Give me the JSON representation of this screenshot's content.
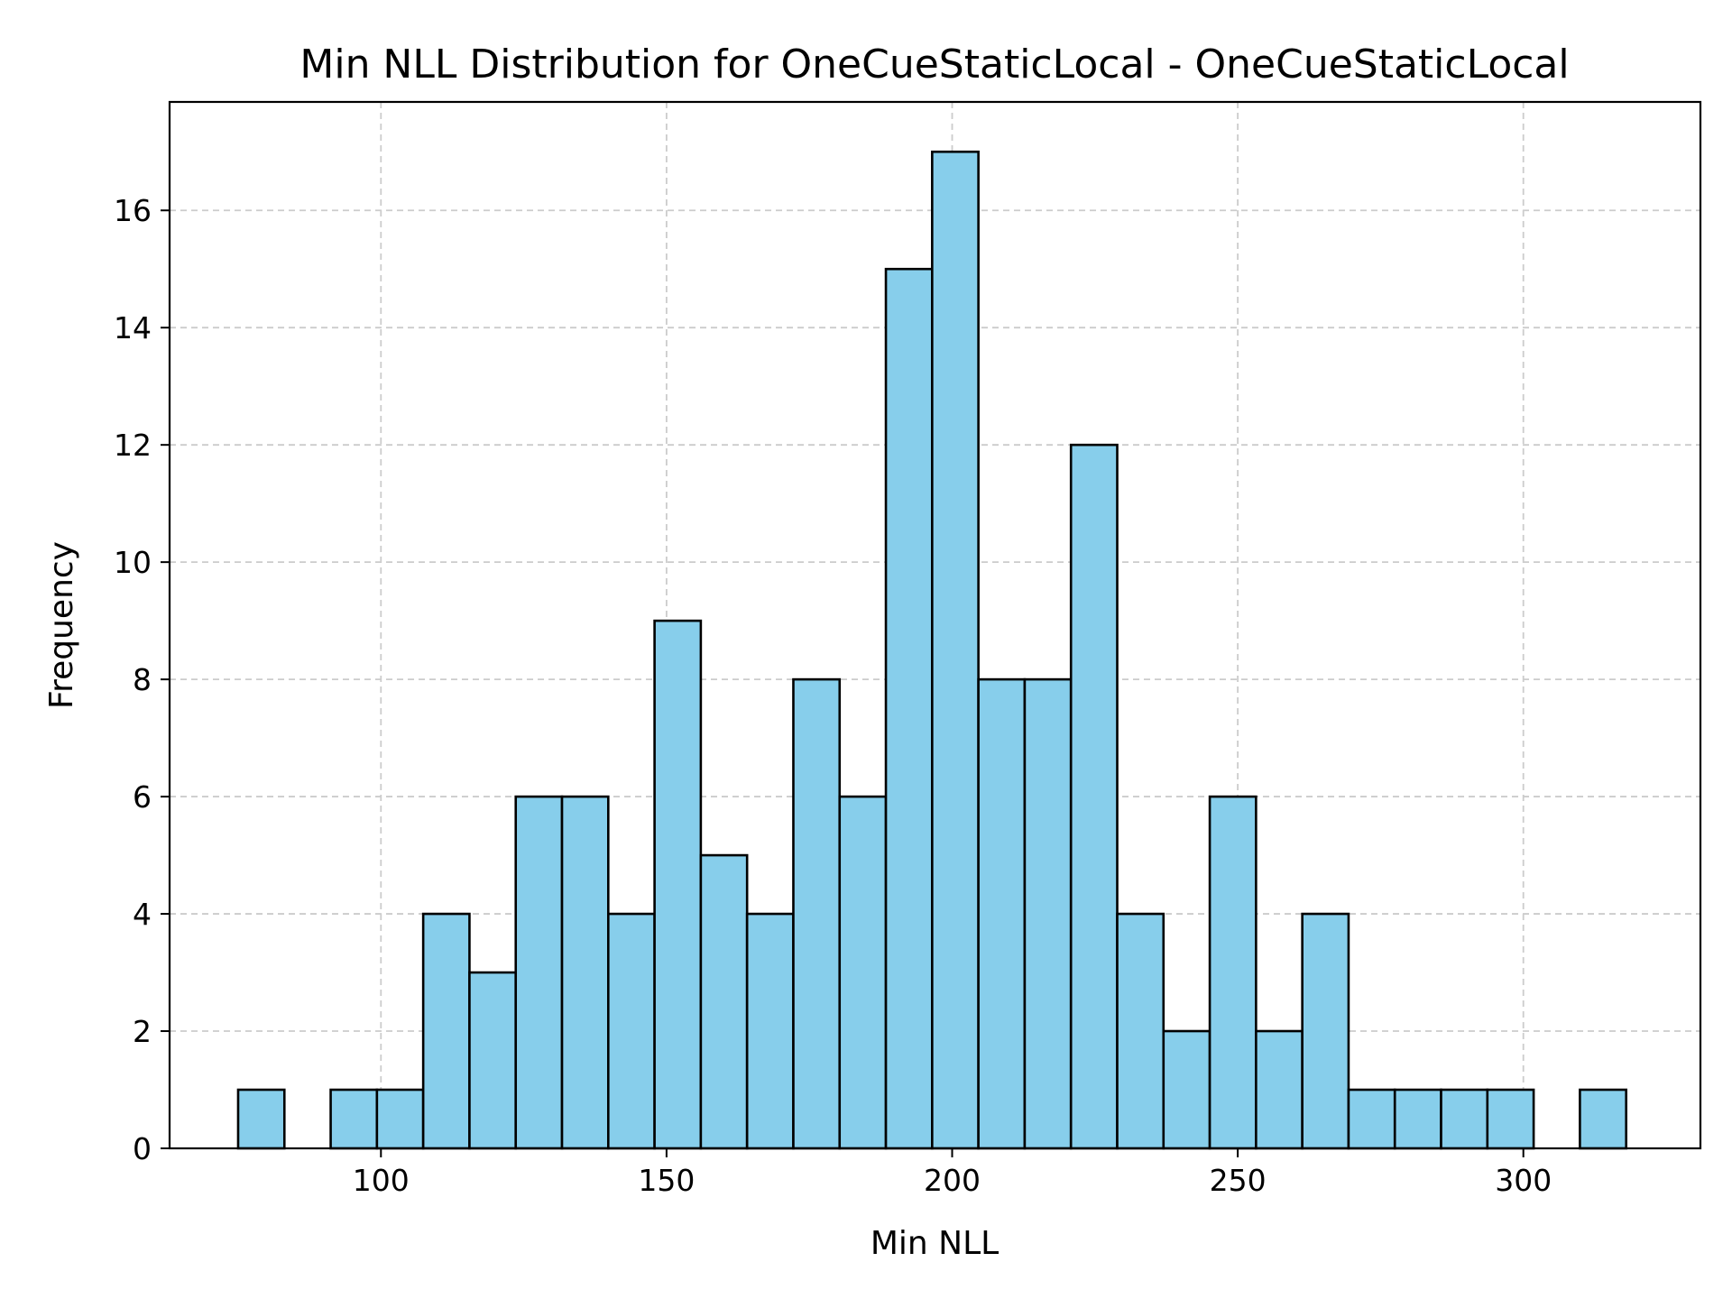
{
  "chart_data": {
    "type": "bar",
    "title": "Min NLL Distribution for OneCueStaticLocal - OneCueStaticLocal",
    "xlabel": "Min NLL",
    "ylabel": "Frequency",
    "xlim": [
      63,
      331
    ],
    "ylim": [
      0,
      17.85
    ],
    "x_ticks": [
      100,
      150,
      200,
      250,
      300
    ],
    "y_ticks": [
      0,
      2,
      4,
      6,
      8,
      10,
      12,
      14,
      16
    ],
    "grid": true,
    "bin_edges": [
      75,
      83.1,
      91.2,
      99.3,
      107.4,
      115.5,
      123.6,
      131.7,
      139.8,
      147.9,
      156.0,
      164.1,
      172.2,
      180.3,
      188.4,
      196.5,
      204.6,
      212.7,
      220.8,
      228.9,
      237.0,
      245.1,
      253.2,
      261.3,
      269.4,
      277.5,
      285.6,
      293.7,
      301.8,
      309.9,
      318.0
    ],
    "values": [
      1,
      0,
      1,
      1,
      4,
      3,
      6,
      6,
      4,
      9,
      5,
      4,
      8,
      6,
      15,
      17,
      8,
      8,
      12,
      4,
      2,
      6,
      2,
      4,
      1,
      1,
      1,
      1,
      0,
      1
    ],
    "colors": {
      "bar_fill": "#87CEEB",
      "bar_edge": "#000000",
      "grid": "#cccccc",
      "axis": "#000000"
    }
  }
}
